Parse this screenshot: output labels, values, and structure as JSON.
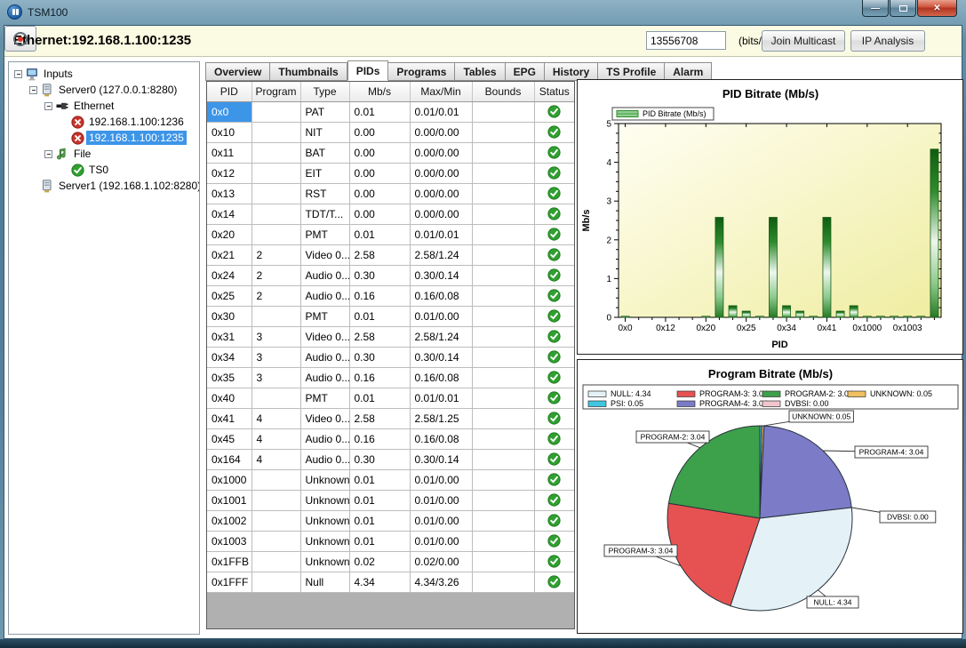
{
  "window": {
    "title": "TSM100"
  },
  "colors": {
    "selection": "#3d95e8",
    "status_ok": "#31a031",
    "status_error": "#c8342c",
    "bar_green": "#2e8b2e",
    "header_band": "#fbfbe3"
  },
  "header": {
    "source_label": "Ethernet:192.168.1.100:1235",
    "bitrate_value": "13556708",
    "bitrate_unit": "(bits/s)",
    "join_multicast_label": "Join Multicast",
    "ip_analysis_label": "IP Analysis"
  },
  "tree": {
    "items": [
      {
        "label": "Inputs",
        "icon": "computer-icon",
        "depth": 0,
        "expander": true,
        "selected": false
      },
      {
        "label": "Server0 (127.0.0.1:8280)",
        "icon": "server-icon",
        "depth": 1,
        "expander": true,
        "selected": false
      },
      {
        "label": "Ethernet",
        "icon": "ethernet-icon",
        "depth": 2,
        "expander": true,
        "selected": false
      },
      {
        "label": "192.168.1.100:1236",
        "icon": "error-icon",
        "depth": 3,
        "expander": false,
        "selected": false
      },
      {
        "label": "192.168.1.100:1235",
        "icon": "error-icon",
        "depth": 3,
        "expander": false,
        "selected": true
      },
      {
        "label": "File",
        "icon": "note-icon",
        "depth": 2,
        "expander": true,
        "selected": false
      },
      {
        "label": "TS0",
        "icon": "ok-icon",
        "depth": 3,
        "expander": false,
        "selected": false
      },
      {
        "label": "Server1 (192.168.1.102:8280)",
        "icon": "server-icon",
        "depth": 1,
        "expander": false,
        "selected": false
      }
    ]
  },
  "tabs": {
    "active": "PIDs",
    "items": [
      "Overview",
      "Thumbnails",
      "PIDs",
      "Programs",
      "Tables",
      "EPG",
      "History",
      "TS Profile",
      "Alarm"
    ]
  },
  "table": {
    "columns": [
      "PID",
      "Program",
      "Type",
      "Mb/s",
      "Max/Min",
      "Bounds",
      "Status"
    ],
    "status_ok_label": "ok",
    "rows": [
      [
        "0x0",
        "",
        "PAT",
        "0.01",
        "0.01/0.01",
        ""
      ],
      [
        "0x10",
        "",
        "NIT",
        "0.00",
        "0.00/0.00",
        ""
      ],
      [
        "0x11",
        "",
        "BAT",
        "0.00",
        "0.00/0.00",
        ""
      ],
      [
        "0x12",
        "",
        "EIT",
        "0.00",
        "0.00/0.00",
        ""
      ],
      [
        "0x13",
        "",
        "RST",
        "0.00",
        "0.00/0.00",
        ""
      ],
      [
        "0x14",
        "",
        "TDT/T...",
        "0.00",
        "0.00/0.00",
        ""
      ],
      [
        "0x20",
        "",
        "PMT",
        "0.01",
        "0.01/0.01",
        ""
      ],
      [
        "0x21",
        "2",
        "Video 0...",
        "2.58",
        "2.58/1.24",
        ""
      ],
      [
        "0x24",
        "2",
        "Audio 0...",
        "0.30",
        "0.30/0.14",
        ""
      ],
      [
        "0x25",
        "2",
        "Audio 0...",
        "0.16",
        "0.16/0.08",
        ""
      ],
      [
        "0x30",
        "",
        "PMT",
        "0.01",
        "0.01/0.00",
        ""
      ],
      [
        "0x31",
        "3",
        "Video 0...",
        "2.58",
        "2.58/1.24",
        ""
      ],
      [
        "0x34",
        "3",
        "Audio 0...",
        "0.30",
        "0.30/0.14",
        ""
      ],
      [
        "0x35",
        "3",
        "Audio 0...",
        "0.16",
        "0.16/0.08",
        ""
      ],
      [
        "0x40",
        "",
        "PMT",
        "0.01",
        "0.01/0.01",
        ""
      ],
      [
        "0x41",
        "4",
        "Video 0...",
        "2.58",
        "2.58/1.25",
        ""
      ],
      [
        "0x45",
        "4",
        "Audio 0...",
        "0.16",
        "0.16/0.08",
        ""
      ],
      [
        "0x164",
        "4",
        "Audio 0...",
        "0.30",
        "0.30/0.14",
        ""
      ],
      [
        "0x1000",
        "",
        "Unknown",
        "0.01",
        "0.01/0.00",
        ""
      ],
      [
        "0x1001",
        "",
        "Unknown",
        "0.01",
        "0.01/0.00",
        ""
      ],
      [
        "0x1002",
        "",
        "Unknown",
        "0.01",
        "0.01/0.00",
        ""
      ],
      [
        "0x1003",
        "",
        "Unknown",
        "0.01",
        "0.01/0.00",
        ""
      ],
      [
        "0x1FFB",
        "",
        "Unknown",
        "0.02",
        "0.02/0.00",
        ""
      ],
      [
        "0x1FFF",
        "",
        "Null",
        "4.34",
        "4.34/3.26",
        ""
      ]
    ],
    "selected_cell": {
      "row": 0,
      "col": 0
    }
  },
  "chart_data": [
    {
      "type": "bar",
      "title": "PID Bitrate (Mb/s)",
      "legend": [
        "PID Bitrate (Mb/s)"
      ],
      "legend_position": "top-left",
      "xlabel": "PID",
      "ylabel": "Mb/s",
      "ylim": [
        0,
        5
      ],
      "y_ticks": [
        0,
        1,
        2,
        3,
        4,
        5
      ],
      "grid": false,
      "categories": [
        "0x0",
        "0x10",
        "0x11",
        "0x12",
        "0x13",
        "0x14",
        "0x20",
        "0x21",
        "0x24",
        "0x25",
        "0x30",
        "0x31",
        "0x34",
        "0x35",
        "0x40",
        "0x41",
        "0x45",
        "0x164",
        "0x1000",
        "0x1001",
        "0x1002",
        "0x1003",
        "0x1FFB",
        "0x1FFF"
      ],
      "values": [
        0.01,
        0.0,
        0.0,
        0.0,
        0.0,
        0.0,
        0.01,
        2.58,
        0.3,
        0.16,
        0.01,
        2.58,
        0.3,
        0.16,
        0.01,
        2.58,
        0.16,
        0.3,
        0.01,
        0.01,
        0.01,
        0.01,
        0.02,
        4.34
      ],
      "x_tick_every": 3,
      "x_tick_labels": [
        "0x0",
        "0x12",
        "0x20",
        "0x25",
        "0x34",
        "0x41",
        "0x1000",
        "0x1003"
      ],
      "bar_color": "#2e8b2e",
      "plot_bg": [
        "#fffef2",
        "#efeda0"
      ]
    },
    {
      "type": "pie",
      "title": "Program Bitrate (Mb/s)",
      "slices": [
        {
          "name": "PSI",
          "value": 0.05,
          "color": "#3fc6df"
        },
        {
          "name": "UNKNOWN",
          "value": 0.05,
          "color": "#f0c060"
        },
        {
          "name": "PROGRAM-4",
          "value": 3.04,
          "color": "#7b7bc8"
        },
        {
          "name": "DVBSI",
          "value": 0.0,
          "color": "#f2c4cc"
        },
        {
          "name": "NULL",
          "value": 4.34,
          "color": "#e4f1f6"
        },
        {
          "name": "PROGRAM-3",
          "value": 3.04,
          "color": "#e65252"
        },
        {
          "name": "PROGRAM-2",
          "value": 3.04,
          "color": "#3da04b"
        }
      ],
      "legend_row_major": [
        "NULL",
        "PROGRAM-3",
        "PROGRAM-2",
        "UNKNOWN",
        "PSI",
        "PROGRAM-4",
        "DVBSI"
      ],
      "callouts": [
        "UNKNOWN",
        "PROGRAM-2",
        "PROGRAM-4",
        "DVBSI",
        "NULL",
        "PROGRAM-3"
      ],
      "legend_position": "top"
    }
  ]
}
